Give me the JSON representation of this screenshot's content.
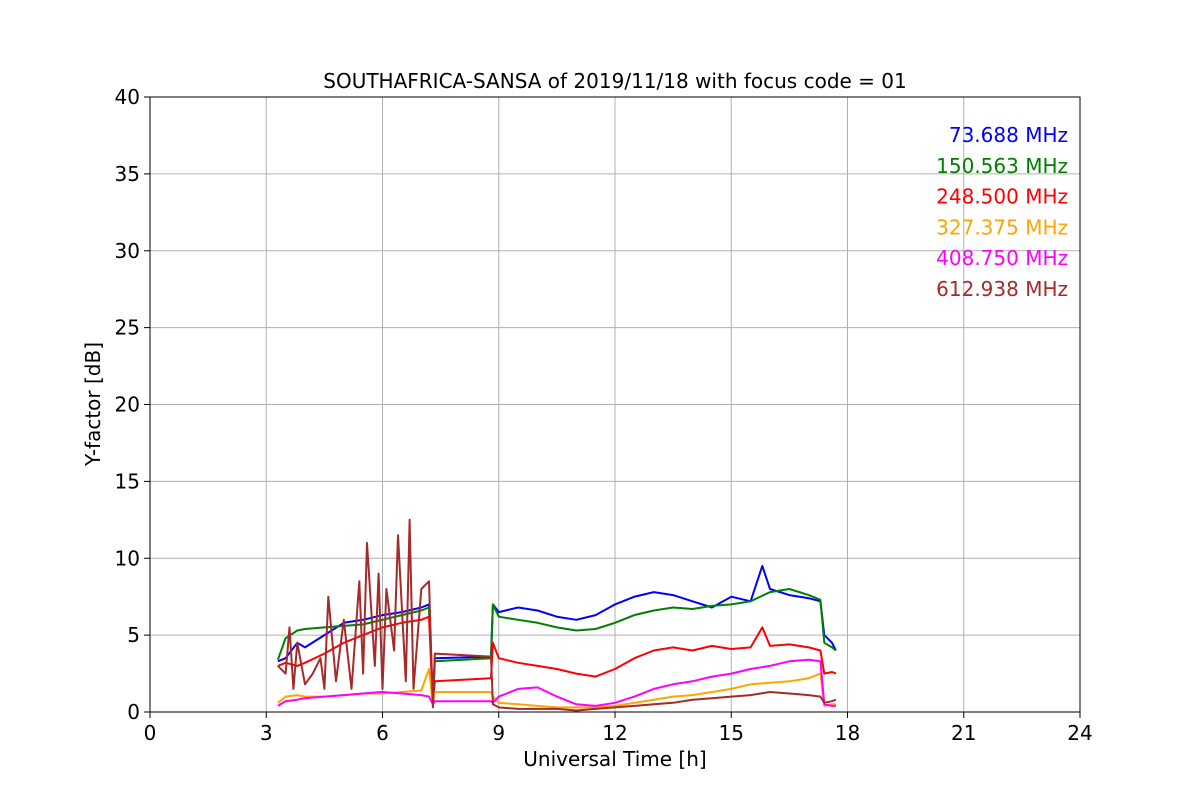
{
  "chart_data": {
    "type": "line",
    "title": "SOUTHAFRICA-SANSA of 2019/11/18 with focus code = 01",
    "xlabel": "Universal Time [h]",
    "ylabel": "Y-factor [dB]",
    "xlim": [
      0,
      24
    ],
    "ylim": [
      0,
      40
    ],
    "xticks": [
      0,
      3,
      6,
      9,
      12,
      15,
      18,
      21,
      24
    ],
    "yticks": [
      0,
      5,
      10,
      15,
      20,
      25,
      30,
      35,
      40
    ],
    "grid": true,
    "legend_position": "top-right",
    "series": [
      {
        "name": "73.688 MHz",
        "color": "#0000ff",
        "x": [
          3.3,
          3.5,
          3.8,
          4.0,
          4.5,
          5.0,
          5.5,
          6.0,
          6.5,
          7.0,
          7.2,
          7.3,
          7.35,
          8.8,
          8.85,
          9.0,
          9.5,
          10.0,
          10.5,
          11.0,
          11.5,
          12.0,
          12.5,
          13.0,
          13.5,
          14.0,
          14.5,
          15.0,
          15.5,
          15.8,
          16.0,
          16.5,
          17.0,
          17.3,
          17.4,
          17.6,
          17.7
        ],
        "y": [
          3.3,
          3.5,
          4.5,
          4.2,
          5.0,
          5.8,
          6.0,
          6.3,
          6.5,
          6.8,
          7.0,
          0.5,
          3.5,
          3.6,
          7.0,
          6.5,
          6.8,
          6.6,
          6.2,
          6.0,
          6.3,
          7.0,
          7.5,
          7.8,
          7.6,
          7.2,
          6.8,
          7.5,
          7.2,
          9.5,
          8.0,
          7.6,
          7.4,
          7.2,
          5.0,
          4.5,
          4.0
        ]
      },
      {
        "name": "150.563 MHz",
        "color": "#008000",
        "x": [
          3.3,
          3.5,
          3.8,
          4.0,
          4.5,
          5.0,
          5.5,
          6.0,
          6.5,
          7.0,
          7.2,
          7.3,
          7.35,
          8.8,
          8.85,
          9.0,
          9.5,
          10.0,
          10.5,
          11.0,
          11.5,
          12.0,
          12.5,
          13.0,
          13.5,
          14.0,
          14.5,
          15.0,
          15.5,
          16.0,
          16.5,
          17.0,
          17.3,
          17.4,
          17.6,
          17.7
        ],
        "y": [
          3.4,
          4.8,
          5.3,
          5.4,
          5.5,
          5.6,
          5.7,
          6.0,
          6.3,
          6.6,
          6.8,
          0.5,
          3.3,
          3.5,
          7.0,
          6.2,
          6.0,
          5.8,
          5.5,
          5.3,
          5.4,
          5.8,
          6.3,
          6.6,
          6.8,
          6.7,
          6.9,
          7.0,
          7.2,
          7.8,
          8.0,
          7.6,
          7.3,
          4.5,
          4.2,
          4.0
        ]
      },
      {
        "name": "248.500 MHz",
        "color": "#ff0000",
        "x": [
          3.3,
          3.5,
          3.8,
          4.0,
          4.5,
          5.0,
          5.5,
          6.0,
          6.5,
          7.0,
          7.2,
          7.3,
          7.35,
          8.8,
          8.85,
          9.0,
          9.5,
          10.0,
          10.5,
          11.0,
          11.5,
          12.0,
          12.5,
          13.0,
          13.5,
          14.0,
          14.5,
          15.0,
          15.5,
          15.8,
          16.0,
          16.5,
          17.0,
          17.3,
          17.4,
          17.6,
          17.7
        ],
        "y": [
          3.0,
          3.2,
          3.0,
          3.2,
          3.8,
          4.5,
          5.0,
          5.5,
          5.8,
          6.0,
          6.2,
          0.5,
          2.0,
          2.2,
          4.5,
          3.5,
          3.2,
          3.0,
          2.8,
          2.5,
          2.3,
          2.8,
          3.5,
          4.0,
          4.2,
          4.0,
          4.3,
          4.1,
          4.2,
          5.5,
          4.3,
          4.4,
          4.2,
          4.0,
          2.5,
          2.6,
          2.5
        ]
      },
      {
        "name": "327.375 MHz",
        "color": "#ffa500",
        "x": [
          3.3,
          3.5,
          3.8,
          4.0,
          4.5,
          5.0,
          5.5,
          6.0,
          6.5,
          7.0,
          7.2,
          7.3,
          7.35,
          8.8,
          8.85,
          9.0,
          9.5,
          10.0,
          10.5,
          11.0,
          11.5,
          12.0,
          12.5,
          13.0,
          13.5,
          14.0,
          14.5,
          15.0,
          15.5,
          16.0,
          16.5,
          17.0,
          17.3,
          17.4,
          17.6,
          17.7
        ],
        "y": [
          0.6,
          1.0,
          1.1,
          1.0,
          1.0,
          1.1,
          1.2,
          1.2,
          1.3,
          1.4,
          2.8,
          0.5,
          1.3,
          1.3,
          1.0,
          0.6,
          0.5,
          0.4,
          0.3,
          0.3,
          0.3,
          0.4,
          0.6,
          0.8,
          1.0,
          1.1,
          1.3,
          1.5,
          1.8,
          1.9,
          2.0,
          2.2,
          2.5,
          0.4,
          0.5,
          0.5
        ]
      },
      {
        "name": "408.750 MHz",
        "color": "#ff00ff",
        "x": [
          3.3,
          3.5,
          3.8,
          4.0,
          4.5,
          5.0,
          5.5,
          6.0,
          6.5,
          7.0,
          7.2,
          7.3,
          7.35,
          8.8,
          8.85,
          9.0,
          9.5,
          10.0,
          10.5,
          11.0,
          11.5,
          12.0,
          12.5,
          13.0,
          13.5,
          14.0,
          14.5,
          15.0,
          15.5,
          16.0,
          16.5,
          17.0,
          17.3,
          17.4,
          17.6,
          17.7
        ],
        "y": [
          0.4,
          0.7,
          0.8,
          0.9,
          1.0,
          1.1,
          1.2,
          1.3,
          1.2,
          1.1,
          1.0,
          0.5,
          0.7,
          0.7,
          0.6,
          1.0,
          1.5,
          1.6,
          1.0,
          0.5,
          0.4,
          0.6,
          1.0,
          1.5,
          1.8,
          2.0,
          2.3,
          2.5,
          2.8,
          3.0,
          3.3,
          3.4,
          3.3,
          0.5,
          0.4,
          0.4
        ]
      },
      {
        "name": "612.938 MHz",
        "color": "#a52a2a",
        "x": [
          3.3,
          3.5,
          3.6,
          3.7,
          3.8,
          4.0,
          4.2,
          4.4,
          4.5,
          4.6,
          4.8,
          5.0,
          5.2,
          5.4,
          5.5,
          5.6,
          5.8,
          5.9,
          6.0,
          6.1,
          6.3,
          6.4,
          6.6,
          6.7,
          6.8,
          7.0,
          7.2,
          7.3,
          7.35,
          8.8,
          8.85,
          9.0,
          9.5,
          10.0,
          10.5,
          11.0,
          11.5,
          12.0,
          12.5,
          13.0,
          13.5,
          14.0,
          14.5,
          15.0,
          15.5,
          16.0,
          16.5,
          17.0,
          17.3,
          17.4,
          17.6,
          17.7
        ],
        "y": [
          3.0,
          2.5,
          5.5,
          1.5,
          4.5,
          1.8,
          2.5,
          3.5,
          1.5,
          7.5,
          2.0,
          6.0,
          1.5,
          8.5,
          2.5,
          11.0,
          3.0,
          9.0,
          1.5,
          8.0,
          4.0,
          11.5,
          2.0,
          12.5,
          1.5,
          8.0,
          8.5,
          0.3,
          3.8,
          3.6,
          0.5,
          0.3,
          0.2,
          0.2,
          0.2,
          0.1,
          0.2,
          0.3,
          0.4,
          0.5,
          0.6,
          0.8,
          0.9,
          1.0,
          1.1,
          1.3,
          1.2,
          1.1,
          1.0,
          0.6,
          0.7,
          0.8
        ]
      }
    ]
  }
}
